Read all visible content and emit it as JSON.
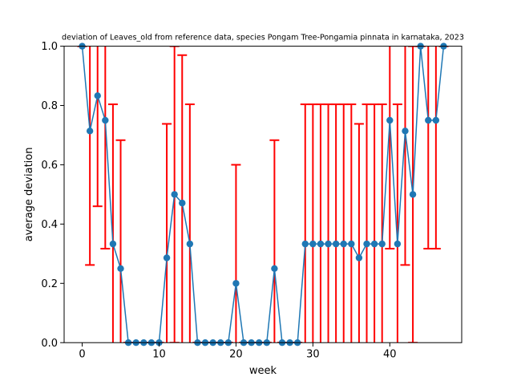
{
  "chart_data": {
    "type": "line",
    "title": "deviation of Leaves_old from reference data, species Pongam Tree-Pongamia pinnata in karnataka, 2023",
    "xlabel": "week",
    "ylabel": "average deviation",
    "xlim": [
      -2.35,
      49.35
    ],
    "ylim": [
      0,
      1
    ],
    "xticks": [
      0,
      10,
      20,
      30,
      40
    ],
    "yticks": [
      0.0,
      0.2,
      0.4,
      0.6,
      0.8,
      1.0
    ],
    "ytick_labels": [
      "0.0",
      "0.2",
      "0.4",
      "0.6",
      "0.8",
      "1.0"
    ],
    "grid": false,
    "series": [
      {
        "color": "#1f77b4",
        "errorbar_color": "#ff0000",
        "marker": "circle",
        "x": [
          0,
          1,
          2,
          3,
          4,
          5,
          6,
          7,
          8,
          9,
          10,
          11,
          12,
          13,
          14,
          15,
          16,
          17,
          18,
          19,
          20,
          21,
          22,
          23,
          24,
          25,
          26,
          27,
          28,
          29,
          30,
          31,
          32,
          33,
          34,
          35,
          36,
          37,
          38,
          39,
          40,
          41,
          42,
          43,
          44,
          45,
          46,
          47
        ],
        "y": [
          1.0,
          0.714,
          0.833,
          0.75,
          0.333,
          0.25,
          0,
          0,
          0,
          0,
          0,
          0.286,
          0.5,
          0.471,
          0.333,
          0,
          0,
          0,
          0,
          0,
          0.2,
          0,
          0,
          0,
          0,
          0.25,
          0,
          0,
          0,
          0.333,
          0.333,
          0.333,
          0.333,
          0.333,
          0.333,
          0.333,
          0.286,
          0.333,
          0.333,
          0.333,
          0.75,
          0.333,
          0.714,
          0.5,
          1.0,
          0.75,
          0.75,
          1.0
        ],
        "err": [
          0,
          0.452,
          0.373,
          0.433,
          0.471,
          0.433,
          0,
          0,
          0,
          0,
          0,
          0.452,
          0.5,
          0.499,
          0.471,
          0,
          0,
          0,
          0,
          0,
          0.4,
          0,
          0,
          0,
          0,
          0.433,
          0,
          0,
          0,
          0.471,
          0.471,
          0.471,
          0.471,
          0.471,
          0.471,
          0.471,
          0.452,
          0.471,
          0.471,
          0.471,
          0.433,
          0.471,
          0.452,
          0.5,
          0,
          0.433,
          0.433,
          0
        ]
      }
    ]
  }
}
